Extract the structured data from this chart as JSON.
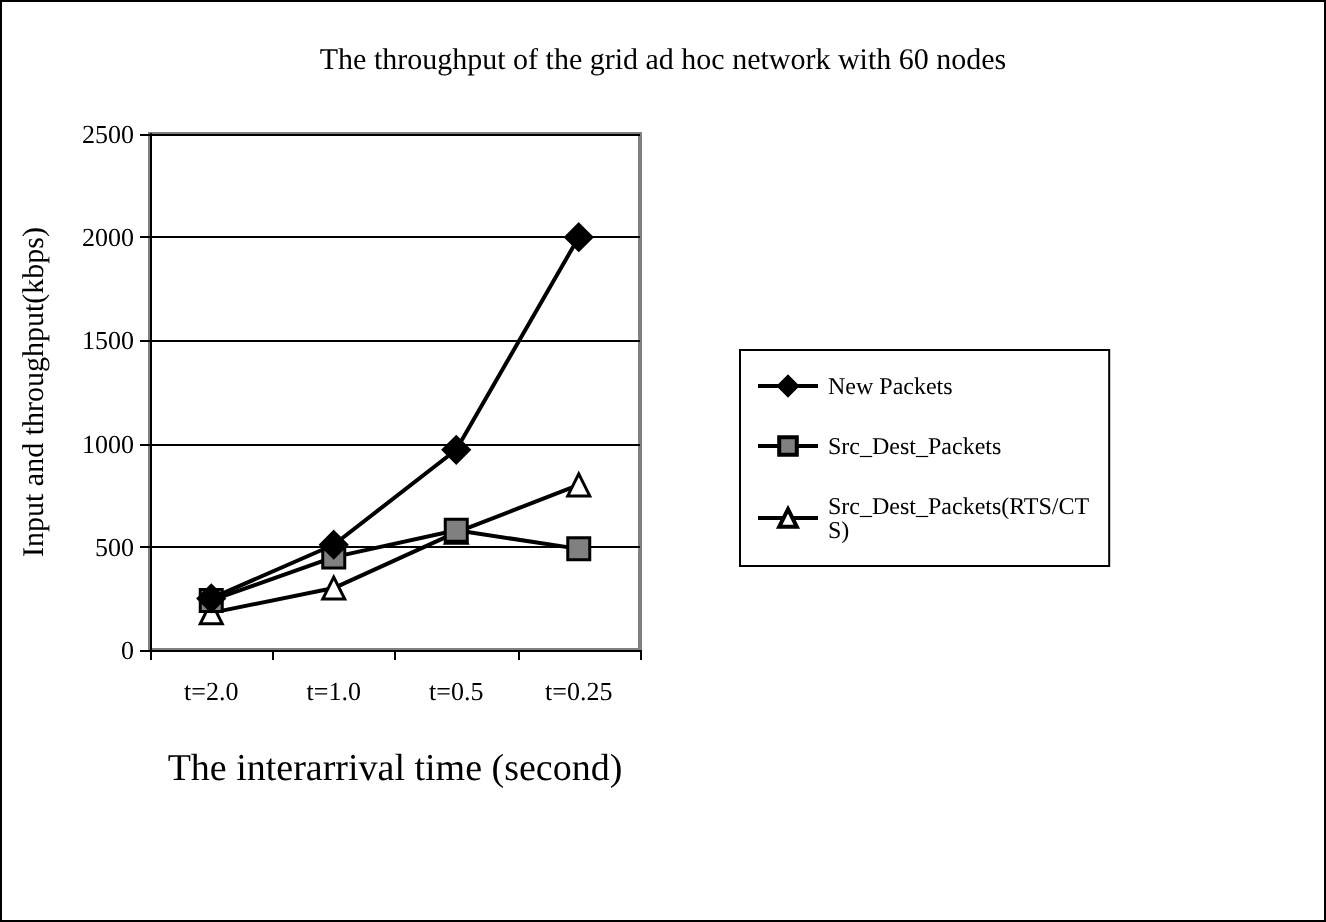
{
  "chart_data": {
    "type": "line",
    "title": "The throughput of the grid ad hoc network with 60 nodes",
    "xlabel": "The interarrival time (second)",
    "ylabel": "Input and throughput(kbps)",
    "categories": [
      "t=2.0",
      "t=1.0",
      "t=0.5",
      "t=0.25"
    ],
    "series": [
      {
        "name": "New Packets",
        "color": "#000000",
        "marker": "diamond",
        "values": [
          250,
          510,
          970,
          2000
        ]
      },
      {
        "name": "Src_Dest_Packets",
        "color": "#808080",
        "marker": "square",
        "values": [
          240,
          450,
          580,
          490
        ]
      },
      {
        "name": "Src_Dest_Packets(RTS/CTS)",
        "color": "#000000",
        "marker": "triangle",
        "values": [
          180,
          300,
          570,
          800
        ]
      }
    ],
    "ylim": [
      0,
      2500
    ],
    "yticks": [
      0,
      500,
      1000,
      1500,
      2000,
      2500
    ],
    "grid": "y",
    "legend": "right",
    "line_style": "solid"
  }
}
